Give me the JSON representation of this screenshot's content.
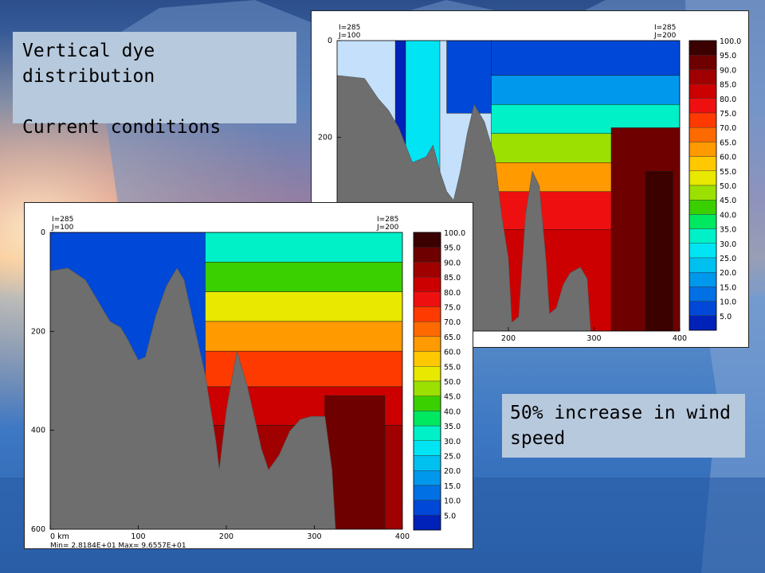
{
  "slide": {
    "caption_top": {
      "line1": "Vertical dye distribution",
      "line2": "Current conditions"
    },
    "caption_bottom": {
      "line1": "50% increase in wind",
      "line2": "speed"
    }
  },
  "chart_data": [
    {
      "type": "heatmap",
      "title": "Current conditions",
      "corner_left": [
        "I=285",
        "J=100"
      ],
      "corner_right": [
        "I=285",
        "J=200"
      ],
      "x_ticks": [
        "200",
        "300",
        "400"
      ],
      "y_ticks": [
        "0",
        "200"
      ],
      "xlim": [
        0,
        400
      ],
      "ylim": [
        0,
        600
      ],
      "colorbar": {
        "levels": [
          "100.0",
          "95.0",
          "90.0",
          "85.0",
          "80.0",
          "75.0",
          "70.0",
          "65.0",
          "60.0",
          "55.0",
          "50.0",
          "45.0",
          "40.0",
          "35.0",
          "30.0",
          "25.0",
          "20.0",
          "15.0",
          "10.0",
          "5.0"
        ],
        "colors": [
          "#3b0000",
          "#6e0000",
          "#a00000",
          "#cc0000",
          "#ee1010",
          "#ff3a00",
          "#ff6a00",
          "#ff9a00",
          "#ffc800",
          "#e8e800",
          "#9be000",
          "#3ad000",
          "#00e860",
          "#00f0c8",
          "#00e4f4",
          "#00c0f0",
          "#0098ec",
          "#0070e4",
          "#0048d8",
          "#0022b8"
        ]
      }
    },
    {
      "type": "heatmap",
      "title": "50% increase in wind speed",
      "corner_left": [
        "I=285",
        "J=100"
      ],
      "corner_right": [
        "I=285",
        "J=200"
      ],
      "x_ticks": [
        "0 km",
        "100",
        "200",
        "300",
        "400"
      ],
      "y_ticks": [
        "0",
        "200",
        "400",
        "600"
      ],
      "xlim": [
        0,
        400
      ],
      "ylim": [
        0,
        600
      ],
      "footer": "Min= 2.8184E+01   Max= 9.6557E+01",
      "colorbar": {
        "levels": [
          "100.0",
          "95.0",
          "90.0",
          "85.0",
          "80.0",
          "75.0",
          "70.0",
          "65.0",
          "60.0",
          "55.0",
          "50.0",
          "45.0",
          "40.0",
          "35.0",
          "30.0",
          "25.0",
          "20.0",
          "15.0",
          "10.0",
          "5.0"
        ],
        "colors": [
          "#3b0000",
          "#6e0000",
          "#a00000",
          "#cc0000",
          "#ee1010",
          "#ff3a00",
          "#ff6a00",
          "#ff9a00",
          "#ffc800",
          "#e8e800",
          "#9be000",
          "#3ad000",
          "#00e860",
          "#00f0c8",
          "#00e4f4",
          "#00c0f0",
          "#0098ec",
          "#0070e4",
          "#0048d8",
          "#0022b8"
        ]
      }
    }
  ]
}
